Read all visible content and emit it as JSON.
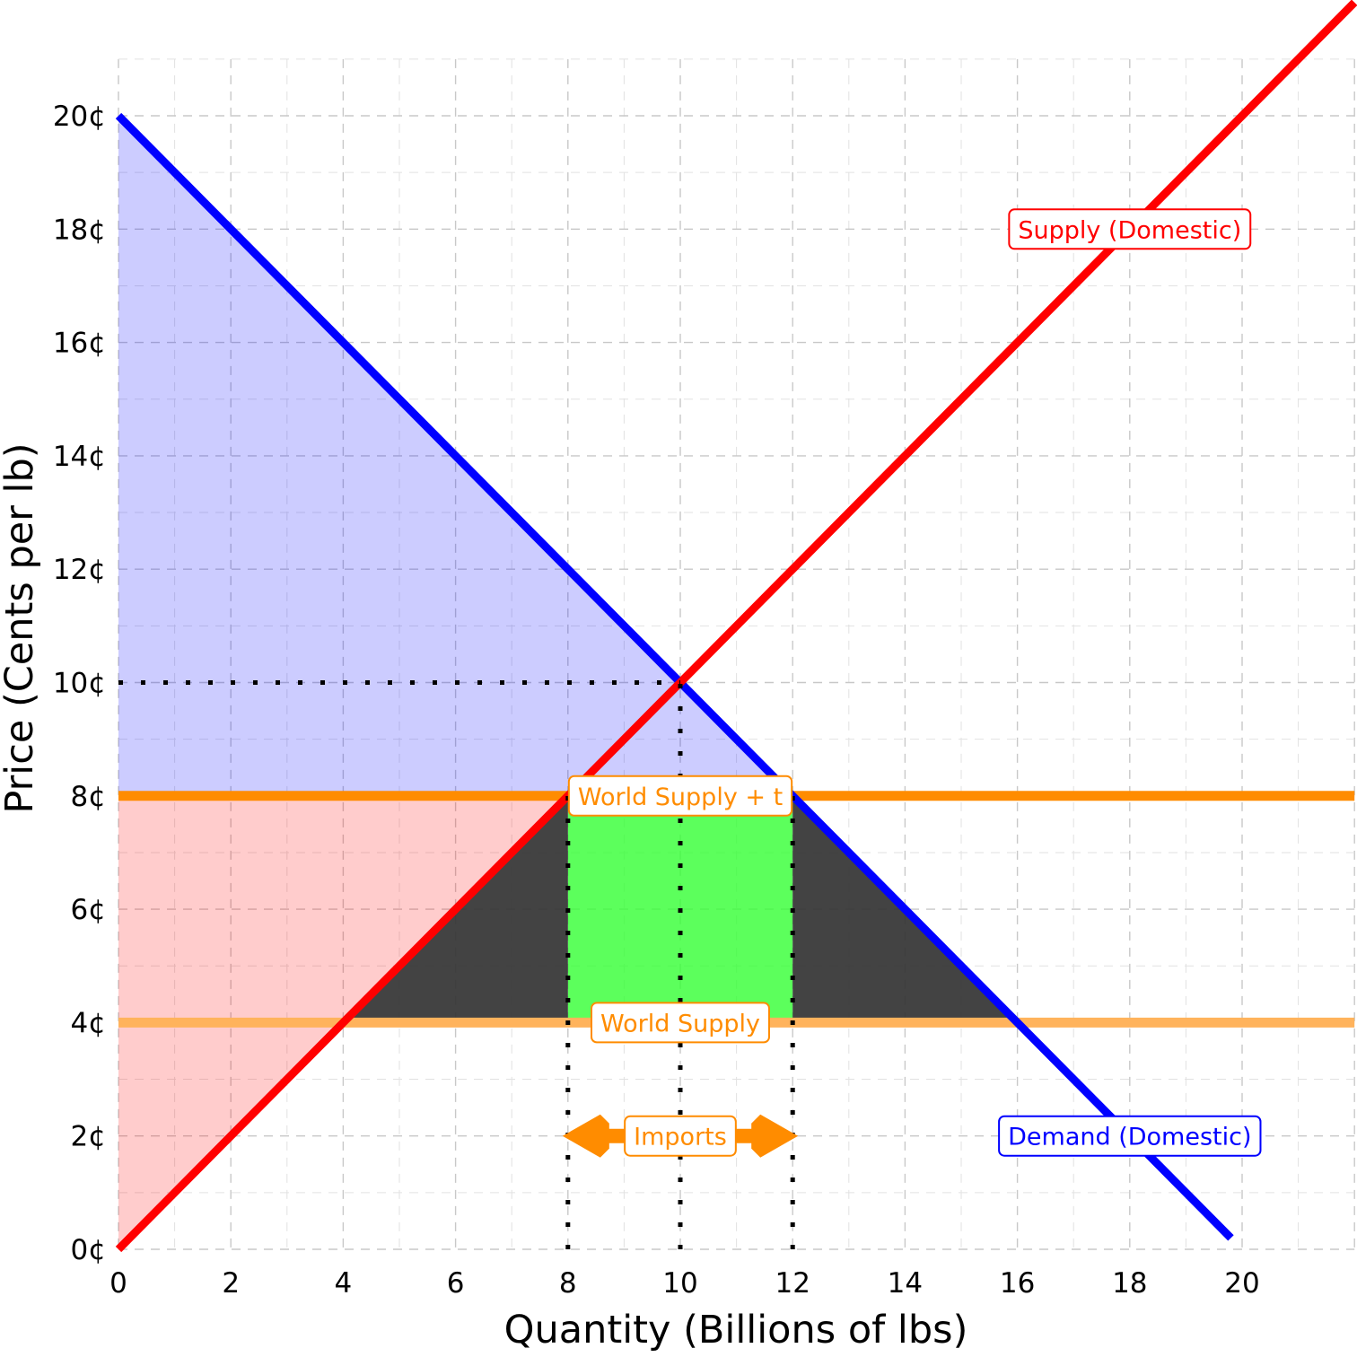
{
  "chart_data": {
    "type": "line",
    "xlabel": "Quantity (Billions of lbs)",
    "ylabel": "Price (Cents per lb)",
    "xlim": [
      0,
      22
    ],
    "ylim": [
      0,
      21
    ],
    "x_ticks": [
      "0",
      "2",
      "4",
      "6",
      "8",
      "10",
      "12",
      "14",
      "16",
      "18",
      "20"
    ],
    "y_ticks": [
      "0¢",
      "2¢",
      "4¢",
      "6¢",
      "8¢",
      "10¢",
      "12¢",
      "14¢",
      "16¢",
      "18¢",
      "20¢"
    ],
    "grid": true,
    "series": [
      {
        "name": "Supply (Domestic)",
        "color": "#ff0000",
        "x": [
          0,
          22
        ],
        "y": [
          0,
          22
        ]
      },
      {
        "name": "Demand (Domestic)",
        "color": "#0000ff",
        "x": [
          0,
          19.8
        ],
        "y": [
          20,
          0.2
        ]
      },
      {
        "name": "World Supply + t",
        "color": "#ff8c00",
        "x": [
          0,
          22
        ],
        "y": [
          8,
          8
        ]
      },
      {
        "name": "World Supply",
        "color": "#ffb35c",
        "x": [
          0,
          22
        ],
        "y": [
          4,
          4
        ]
      }
    ],
    "areas": [
      {
        "role": "consumer-surplus",
        "color": "#0000ff",
        "points": [
          [
            0,
            20
          ],
          [
            0,
            8
          ],
          [
            12,
            8
          ]
        ]
      },
      {
        "role": "producer-surplus",
        "color": "#ff0000",
        "points": [
          [
            0,
            0
          ],
          [
            0,
            8
          ],
          [
            8,
            8
          ]
        ]
      },
      {
        "role": "tariff-revenue",
        "color": "#33ff33",
        "points": [
          [
            8,
            4
          ],
          [
            12,
            4
          ],
          [
            12,
            8
          ],
          [
            8,
            8
          ]
        ]
      },
      {
        "role": "deadweight-loss-left",
        "color": "#333333",
        "points": [
          [
            4,
            4
          ],
          [
            8,
            8
          ],
          [
            8,
            4
          ]
        ]
      },
      {
        "role": "deadweight-loss-right",
        "color": "#333333",
        "points": [
          [
            12,
            8
          ],
          [
            16,
            4
          ],
          [
            12,
            4
          ]
        ]
      }
    ],
    "reference_lines": [
      {
        "x": [
          0,
          10
        ],
        "y": [
          10,
          10
        ]
      },
      {
        "x": [
          10,
          10
        ],
        "y": [
          0,
          10
        ]
      },
      {
        "x": [
          8,
          8
        ],
        "y": [
          0,
          8
        ]
      },
      {
        "x": [
          12,
          12
        ],
        "y": [
          0,
          8
        ]
      }
    ],
    "annotations": [
      {
        "text": "Supply (Domestic)",
        "x": 18,
        "y": 18,
        "color": "#ff0000"
      },
      {
        "text": "Demand (Domestic)",
        "x": 18,
        "y": 2,
        "color": "#0000ff"
      },
      {
        "text": "World Supply + t",
        "x": 10,
        "y": 8,
        "color": "#ff8c00"
      },
      {
        "text": "World Supply",
        "x": 10,
        "y": 4,
        "color": "#ff8c00"
      },
      {
        "text": "Imports",
        "x": 10,
        "y": 2,
        "color": "#ff8c00"
      }
    ],
    "imports_arrow": {
      "x": [
        8,
        12
      ],
      "y": 2,
      "color": "#ff8c00"
    }
  }
}
